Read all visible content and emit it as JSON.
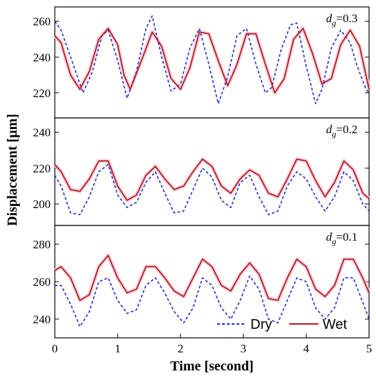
{
  "chart_data": {
    "type": "line",
    "xlabel": "Time [second]",
    "ylabel": "Displacement [μm]",
    "xlim": [
      0,
      5
    ],
    "x_ticks": [
      "0",
      "1",
      "2",
      "3",
      "4",
      "5"
    ],
    "legend": {
      "placement": "bottom-right",
      "entries": [
        {
          "name": "Dry",
          "style": "dashed",
          "color": "#1f2bd6"
        },
        {
          "name": "Wet",
          "style": "solid",
          "color": "#b01c1c"
        }
      ]
    },
    "band_color": "#f7c8dc",
    "panels": [
      {
        "label": "d",
        "label_sub": "g",
        "label_value": "=0.3",
        "ylim": [
          206,
          268
        ],
        "y_ticks": [
          220,
          240,
          260
        ],
        "series": [
          {
            "name": "Dry",
            "x": [
              0,
              0.1,
              0.25,
              0.45,
              0.6,
              0.75,
              0.85,
              1.0,
              1.15,
              1.3,
              1.45,
              1.55,
              1.7,
              1.85,
              2.0,
              2.15,
              2.3,
              2.45,
              2.6,
              2.75,
              2.9,
              3.05,
              3.2,
              3.35,
              3.45,
              3.6,
              3.75,
              3.85,
              4.0,
              4.15,
              4.25,
              4.4,
              4.55,
              4.7,
              4.8,
              4.95,
              5.0
            ],
            "y": [
              260,
              255,
              240,
              220,
              232,
              252,
              255,
              238,
              217,
              232,
              256,
              263,
              240,
              221,
              225,
              245,
              256,
              236,
              214,
              229,
              252,
              256,
              236,
              220,
              223,
              244,
              258,
              259,
              235,
              214,
              222,
              245,
              255,
              248,
              236,
              222,
              220
            ]
          },
          {
            "name": "Wet",
            "x": [
              0,
              0.1,
              0.25,
              0.4,
              0.55,
              0.7,
              0.85,
              1.0,
              1.1,
              1.2,
              1.4,
              1.55,
              1.7,
              1.85,
              2.0,
              2.15,
              2.3,
              2.45,
              2.6,
              2.75,
              2.9,
              3.05,
              3.2,
              3.35,
              3.5,
              3.65,
              3.8,
              3.95,
              4.1,
              4.25,
              4.4,
              4.55,
              4.7,
              4.85,
              5.0
            ],
            "y": [
              252,
              248,
              230,
              222,
              232,
              250,
              256,
              247,
              230,
              222,
              240,
              254,
              246,
              228,
              222,
              234,
              254,
              253,
              238,
              224,
              236,
              253,
              253,
              236,
              220,
              228,
              250,
              256,
              242,
              225,
              228,
              247,
              255,
              246,
              222
            ]
          }
        ]
      },
      {
        "label": "d",
        "label_sub": "g",
        "label_value": "=0.2",
        "ylim": [
          188,
          248
        ],
        "y_ticks": [
          200,
          220,
          240
        ],
        "series": [
          {
            "name": "Dry",
            "x": [
              0,
              0.1,
              0.25,
              0.4,
              0.55,
              0.7,
              0.85,
              1.0,
              1.15,
              1.3,
              1.45,
              1.6,
              1.75,
              1.9,
              2.05,
              2.2,
              2.35,
              2.5,
              2.65,
              2.8,
              2.95,
              3.1,
              3.25,
              3.4,
              3.55,
              3.7,
              3.85,
              4.0,
              4.15,
              4.3,
              4.45,
              4.6,
              4.75,
              4.9,
              5.0
            ],
            "y": [
              216,
              210,
              195,
              194,
              204,
              218,
              222,
              205,
              198,
              201,
              212,
              218,
              206,
              195,
              196,
              208,
              220,
              215,
              202,
              198,
              212,
              216,
              204,
              194,
              196,
              210,
              218,
              214,
              204,
              196,
              204,
              218,
              213,
              200,
              196
            ]
          },
          {
            "name": "Wet",
            "x": [
              0,
              0.1,
              0.25,
              0.4,
              0.55,
              0.7,
              0.85,
              1.0,
              1.15,
              1.3,
              1.45,
              1.6,
              1.75,
              1.9,
              2.05,
              2.2,
              2.35,
              2.5,
              2.65,
              2.8,
              2.95,
              3.1,
              3.25,
              3.4,
              3.55,
              3.7,
              3.85,
              4.0,
              4.15,
              4.3,
              4.45,
              4.6,
              4.75,
              4.9,
              5.0
            ],
            "y": [
              222,
              218,
              208,
              207,
              214,
              224,
              224,
              210,
              202,
              205,
              216,
              221,
              214,
              208,
              210,
              218,
              225,
              221,
              210,
              206,
              214,
              219,
              216,
              206,
              204,
              214,
              225,
              224,
              213,
              204,
              212,
              224,
              219,
              206,
              203
            ]
          }
        ]
      },
      {
        "label": "d",
        "label_sub": "g",
        "label_value": "=0.1",
        "ylim": [
          230,
          290
        ],
        "y_ticks": [
          240,
          260,
          280
        ],
        "series": [
          {
            "name": "Dry",
            "x": [
              0,
              0.1,
              0.25,
              0.4,
              0.55,
              0.7,
              0.85,
              1.0,
              1.15,
              1.3,
              1.45,
              1.6,
              1.75,
              1.9,
              2.05,
              2.2,
              2.35,
              2.5,
              2.65,
              2.8,
              2.95,
              3.1,
              3.25,
              3.4,
              3.55,
              3.7,
              3.85,
              4.0,
              4.15,
              4.3,
              4.45,
              4.6,
              4.75,
              4.9,
              5.0
            ],
            "y": [
              258,
              258,
              248,
              236,
              244,
              260,
              262,
              250,
              243,
              245,
              258,
              262,
              254,
              244,
              238,
              246,
              262,
              258,
              246,
              240,
              250,
              263,
              256,
              240,
              238,
              250,
              262,
              260,
              246,
              240,
              246,
              262,
              262,
              249,
              240
            ]
          },
          {
            "name": "Wet",
            "x": [
              0,
              0.1,
              0.25,
              0.4,
              0.55,
              0.7,
              0.85,
              1.0,
              1.15,
              1.3,
              1.45,
              1.6,
              1.75,
              1.9,
              2.05,
              2.2,
              2.35,
              2.5,
              2.65,
              2.8,
              2.95,
              3.1,
              3.25,
              3.4,
              3.55,
              3.7,
              3.85,
              4.0,
              4.15,
              4.3,
              4.45,
              4.6,
              4.75,
              4.9,
              5.0
            ],
            "y": [
              266,
              268,
              262,
              250,
              253,
              268,
              274,
              262,
              254,
              256,
              268,
              268,
              262,
              255,
              252,
              262,
              272,
              268,
              258,
              255,
              264,
              270,
              264,
              251,
              250,
              262,
              272,
              268,
              256,
              252,
              258,
              272,
              272,
              262,
              254
            ]
          }
        ]
      }
    ]
  }
}
